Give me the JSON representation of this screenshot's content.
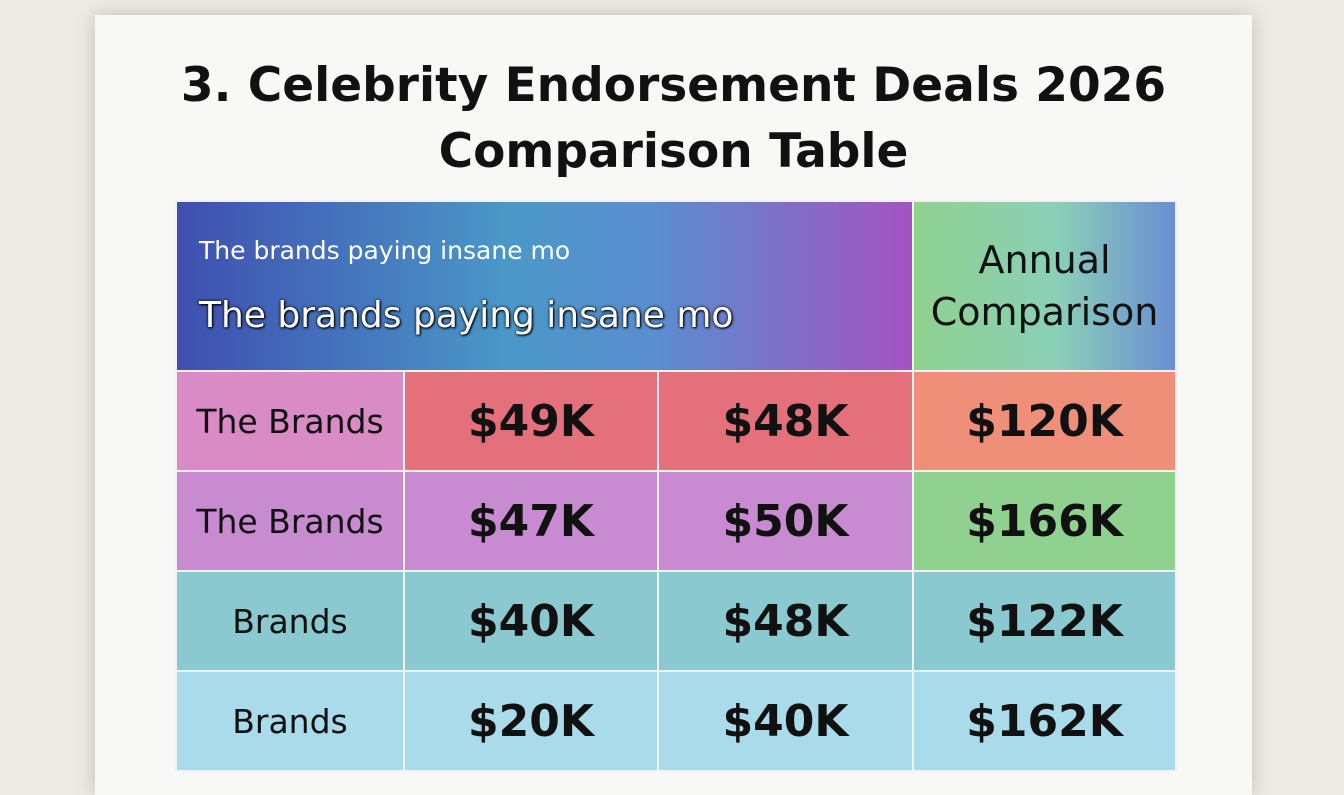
{
  "header": {
    "title_line1": "3. Celebrity Endorsement Deals 2026",
    "title_line2": "Comparison Table"
  },
  "table": {
    "header": {
      "subtitle_small": "The brands paying insane mo",
      "subtitle_large": "The brands paying insane mo",
      "annual": "Annual Comparison"
    },
    "rows": [
      [
        "The Brands",
        "$49K",
        "$48K",
        "$120K"
      ],
      [
        "The Brands",
        "$47K",
        "$50K",
        "$166K"
      ],
      [
        "Brands",
        "$40K",
        "$48K",
        "$122K"
      ],
      [
        "Brands",
        "$20K",
        "$40K",
        "$162K"
      ]
    ]
  }
}
